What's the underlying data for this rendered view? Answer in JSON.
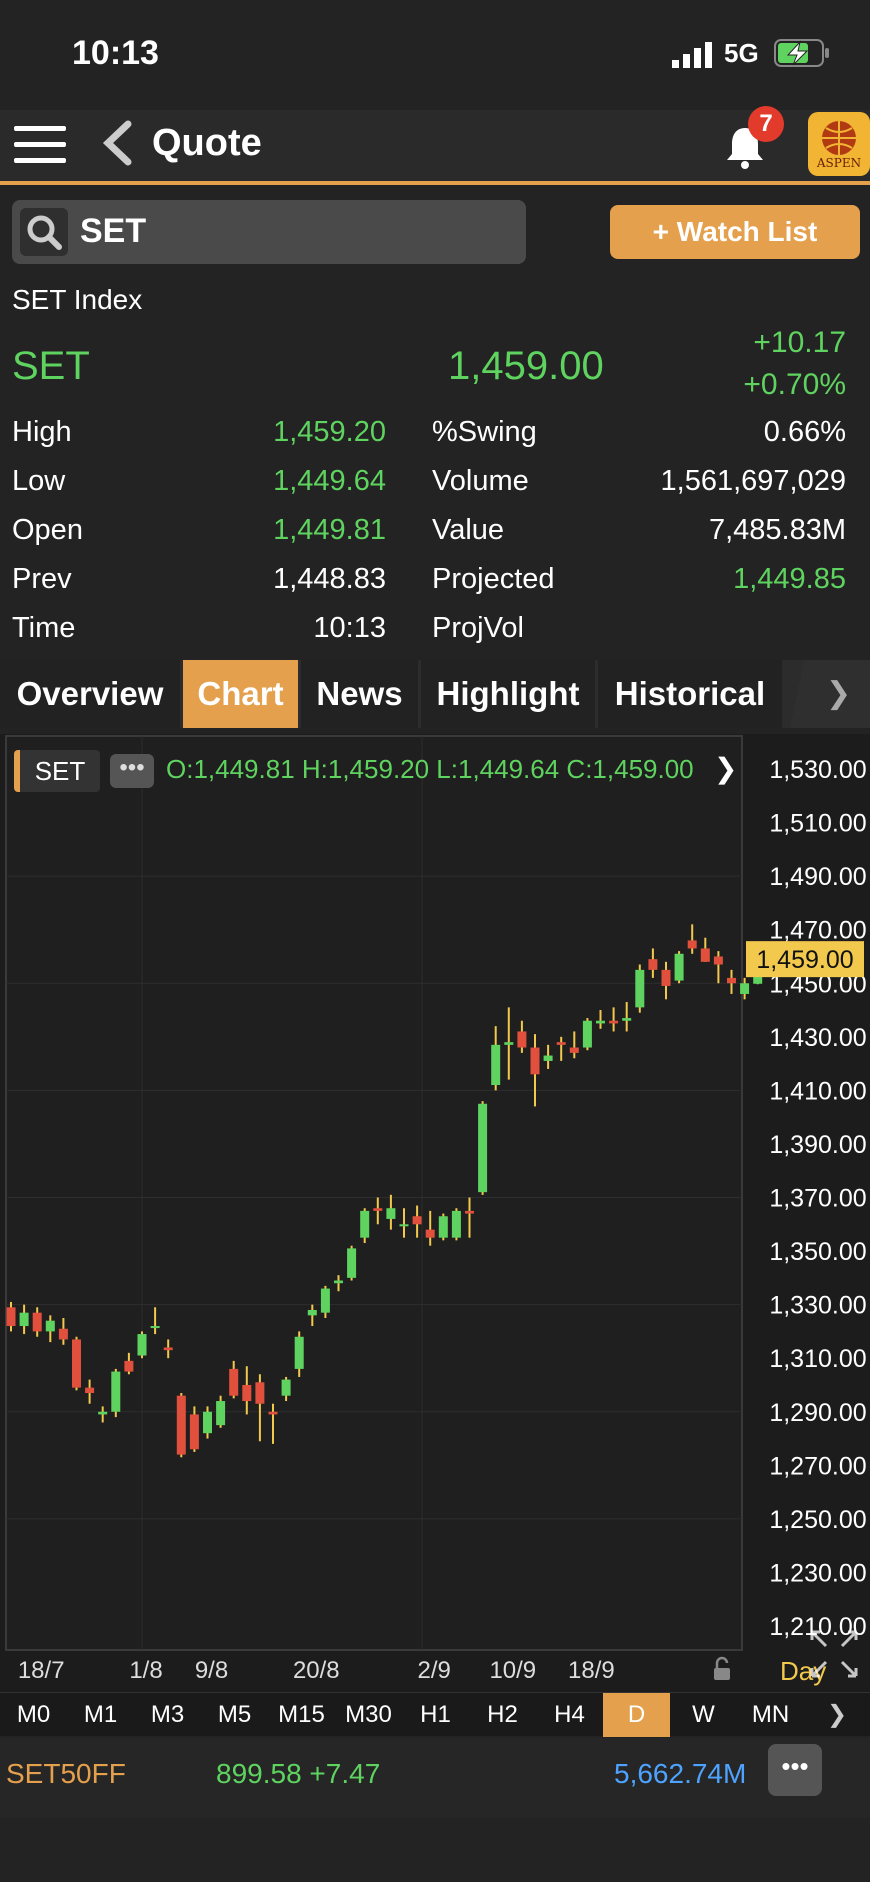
{
  "status": {
    "time": "10:13",
    "network": "5G"
  },
  "header": {
    "title": "Quote",
    "badge": "7",
    "logo_text": "ASPEN"
  },
  "search": {
    "value": "SET"
  },
  "watch_list": "+ Watch List",
  "quote": {
    "name": "SET Index",
    "symbol": "SET",
    "last": "1,459.00",
    "change": "+10.17",
    "change_pct": "+0.70%",
    "left": [
      {
        "label": "High",
        "value": "1,459.20",
        "color": "#5fd35f"
      },
      {
        "label": "Low",
        "value": "1,449.64",
        "color": "#5fd35f"
      },
      {
        "label": "Open",
        "value": "1,449.81",
        "color": "#5fd35f"
      },
      {
        "label": "Prev",
        "value": "1,448.83",
        "color": "#ffffff"
      },
      {
        "label": "Time",
        "value": "10:13",
        "color": "#ffffff"
      }
    ],
    "right": [
      {
        "label": "%Swing",
        "value": "0.66%",
        "color": "#ffffff"
      },
      {
        "label": "Volume",
        "value": "1,561,697,029",
        "color": "#ffffff"
      },
      {
        "label": "Value",
        "value": "7,485.83M",
        "color": "#ffffff"
      },
      {
        "label": "Projected",
        "value": "1,449.85",
        "color": "#5fd35f"
      },
      {
        "label": "ProjVol",
        "value": "",
        "color": "#ffffff"
      }
    ]
  },
  "tabs": [
    "Overview",
    "Chart",
    "News",
    "Highlight",
    "Historical"
  ],
  "active_tab": "Chart",
  "chart": {
    "symbol": "SET",
    "ohlc_text": "O:1,449.81  H:1,459.20  L:1,449.64  C:1,459.00"
  },
  "chart_data": {
    "type": "candlestick",
    "y_ticks": [
      "1,530.00",
      "1,510.00",
      "1,490.00",
      "1,470.00",
      "1,450.00",
      "1,430.00",
      "1,410.00",
      "1,390.00",
      "1,370.00",
      "1,350.00",
      "1,330.00",
      "1,310.00",
      "1,290.00",
      "1,270.00",
      "1,250.00",
      "1,230.00",
      "1,210.00"
    ],
    "ylim": [
      1210,
      1530
    ],
    "last_price_label": "1,459.00",
    "x_labels": [
      "18/7",
      "1/8",
      "9/8",
      "20/8",
      "2/9",
      "10/9",
      "18/9"
    ],
    "x_label_index": [
      2,
      10,
      15,
      23,
      32,
      38,
      44
    ],
    "period_label": "Day",
    "candles": [
      {
        "o": 1329,
        "h": 1331,
        "l": 1320,
        "c": 1322
      },
      {
        "o": 1322,
        "h": 1330,
        "l": 1319,
        "c": 1327
      },
      {
        "o": 1327,
        "h": 1329,
        "l": 1318,
        "c": 1320
      },
      {
        "o": 1320,
        "h": 1326,
        "l": 1316,
        "c": 1324
      },
      {
        "o": 1321,
        "h": 1325,
        "l": 1315,
        "c": 1317
      },
      {
        "o": 1317,
        "h": 1318,
        "l": 1298,
        "c": 1299
      },
      {
        "o": 1299,
        "h": 1302,
        "l": 1293,
        "c": 1297
      },
      {
        "o": 1289,
        "h": 1292,
        "l": 1286,
        "c": 1290
      },
      {
        "o": 1290,
        "h": 1306,
        "l": 1288,
        "c": 1305
      },
      {
        "o": 1309,
        "h": 1312,
        "l": 1304,
        "c": 1305
      },
      {
        "o": 1311,
        "h": 1320,
        "l": 1310,
        "c": 1319
      },
      {
        "o": 1322,
        "h": 1329,
        "l": 1319,
        "c": 1322
      },
      {
        "o": 1314,
        "h": 1317,
        "l": 1310,
        "c": 1313
      },
      {
        "o": 1296,
        "h": 1297,
        "l": 1273,
        "c": 1274
      },
      {
        "o": 1289,
        "h": 1292,
        "l": 1275,
        "c": 1276
      },
      {
        "o": 1282,
        "h": 1292,
        "l": 1280,
        "c": 1290
      },
      {
        "o": 1285,
        "h": 1296,
        "l": 1284,
        "c": 1294
      },
      {
        "o": 1306,
        "h": 1309,
        "l": 1295,
        "c": 1296
      },
      {
        "o": 1300,
        "h": 1307,
        "l": 1289,
        "c": 1294
      },
      {
        "o": 1301,
        "h": 1304,
        "l": 1279,
        "c": 1293
      },
      {
        "o": 1290,
        "h": 1293,
        "l": 1278,
        "c": 1289
      },
      {
        "o": 1296,
        "h": 1303,
        "l": 1294,
        "c": 1302
      },
      {
        "o": 1306,
        "h": 1320,
        "l": 1303,
        "c": 1318
      },
      {
        "o": 1326,
        "h": 1330,
        "l": 1322,
        "c": 1328
      },
      {
        "o": 1327,
        "h": 1337,
        "l": 1325,
        "c": 1336
      },
      {
        "o": 1338,
        "h": 1341,
        "l": 1335,
        "c": 1339
      },
      {
        "o": 1340,
        "h": 1352,
        "l": 1339,
        "c": 1351
      },
      {
        "o": 1355,
        "h": 1366,
        "l": 1353,
        "c": 1365
      },
      {
        "o": 1366,
        "h": 1370,
        "l": 1360,
        "c": 1365
      },
      {
        "o": 1362,
        "h": 1371,
        "l": 1358,
        "c": 1366
      },
      {
        "o": 1360,
        "h": 1366,
        "l": 1355,
        "c": 1360
      },
      {
        "o": 1363,
        "h": 1367,
        "l": 1355,
        "c": 1360
      },
      {
        "o": 1358,
        "h": 1365,
        "l": 1352,
        "c": 1355
      },
      {
        "o": 1355,
        "h": 1364,
        "l": 1354,
        "c": 1363
      },
      {
        "o": 1355,
        "h": 1366,
        "l": 1354,
        "c": 1365
      },
      {
        "o": 1365,
        "h": 1370,
        "l": 1355,
        "c": 1364
      },
      {
        "o": 1372,
        "h": 1406,
        "l": 1371,
        "c": 1405
      },
      {
        "o": 1412,
        "h": 1434,
        "l": 1410,
        "c": 1427
      },
      {
        "o": 1427,
        "h": 1441,
        "l": 1414,
        "c": 1428
      },
      {
        "o": 1432,
        "h": 1436,
        "l": 1424,
        "c": 1426
      },
      {
        "o": 1426,
        "h": 1431,
        "l": 1404,
        "c": 1416
      },
      {
        "o": 1421,
        "h": 1427,
        "l": 1418,
        "c": 1423
      },
      {
        "o": 1428,
        "h": 1430,
        "l": 1421,
        "c": 1427
      },
      {
        "o": 1426,
        "h": 1432,
        "l": 1422,
        "c": 1424
      },
      {
        "o": 1426,
        "h": 1437,
        "l": 1425,
        "c": 1436
      },
      {
        "o": 1435,
        "h": 1440,
        "l": 1433,
        "c": 1436
      },
      {
        "o": 1436,
        "h": 1441,
        "l": 1432,
        "c": 1435
      },
      {
        "o": 1436,
        "h": 1443,
        "l": 1432,
        "c": 1437
      },
      {
        "o": 1441,
        "h": 1457,
        "l": 1439,
        "c": 1455
      },
      {
        "o": 1459,
        "h": 1463,
        "l": 1452,
        "c": 1455
      },
      {
        "o": 1455,
        "h": 1458,
        "l": 1444,
        "c": 1449
      },
      {
        "o": 1451,
        "h": 1462,
        "l": 1450,
        "c": 1461
      },
      {
        "o": 1466,
        "h": 1472,
        "l": 1461,
        "c": 1463
      },
      {
        "o": 1463,
        "h": 1467,
        "l": 1458,
        "c": 1458
      },
      {
        "o": 1460,
        "h": 1462,
        "l": 1450,
        "c": 1457
      },
      {
        "o": 1452,
        "h": 1455,
        "l": 1446,
        "c": 1450
      },
      {
        "o": 1446,
        "h": 1452,
        "l": 1444,
        "c": 1450
      },
      {
        "o": 1449.81,
        "h": 1459.2,
        "l": 1449.64,
        "c": 1459
      }
    ]
  },
  "timeframes": [
    "M0",
    "M1",
    "M3",
    "M5",
    "M15",
    "M30",
    "H1",
    "H2",
    "H4",
    "D",
    "W",
    "MN"
  ],
  "active_timeframe": "D",
  "ticker": {
    "symbol": "SET50FF",
    "price": "899.58 +7.47",
    "value": "5,662.74M"
  }
}
